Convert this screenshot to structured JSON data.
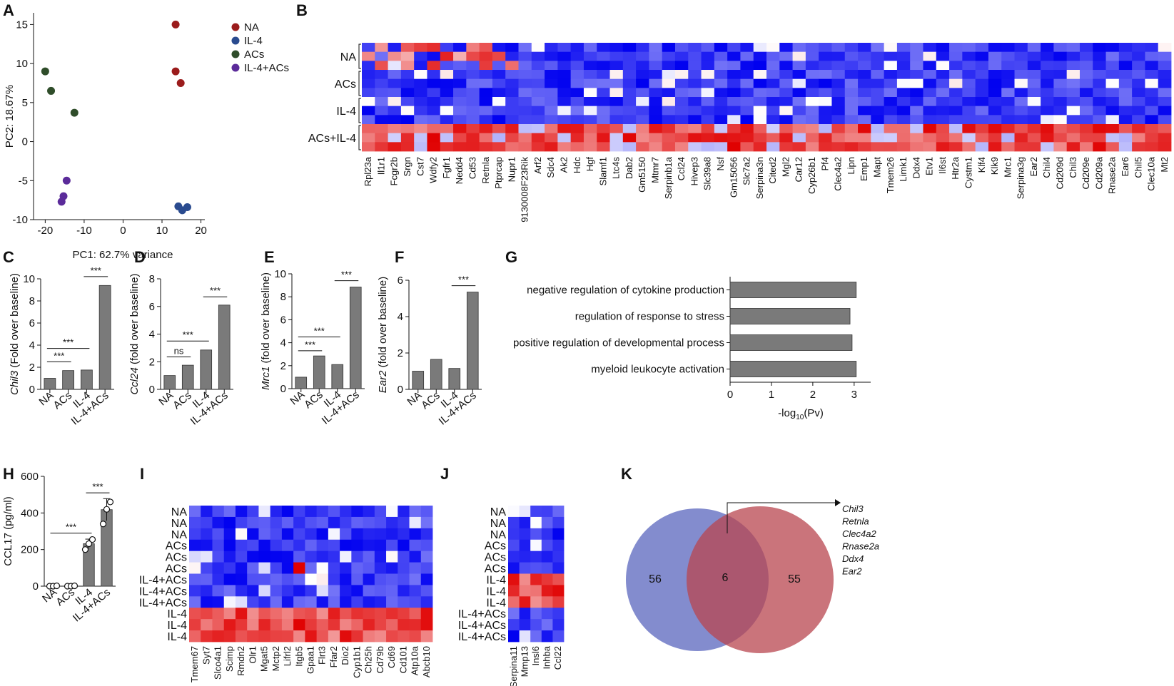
{
  "panels": {
    "A": "A",
    "B": "B",
    "C": "C",
    "D": "D",
    "E": "E",
    "F": "F",
    "G": "G",
    "H": "H",
    "I": "I",
    "J": "J",
    "K": "K"
  },
  "colors": {
    "NA": "#9b1c1c",
    "IL4": "#2a4b8f",
    "ACs": "#2f4d2a",
    "IL4ACs": "#5b2b9a",
    "bar": "#7a7a7a",
    "heat_low": "#0000f0",
    "heat_mid": "#ffffff",
    "heat_high": "#e00000",
    "venn_left": "#5a66bd",
    "venn_right": "#b8464f"
  },
  "chart_data": [
    {
      "id": "A",
      "type": "scatter",
      "xlabel": "PC1: 62.7% variance",
      "ylabel": "PC2: 18.67%",
      "xlim": [
        -23,
        21
      ],
      "ylim": [
        -10,
        16.5
      ],
      "xticks": [
        -20,
        -10,
        0,
        10,
        20
      ],
      "yticks": [
        15,
        10,
        5,
        0,
        -5,
        -10
      ],
      "legend": [
        "NA",
        "IL-4",
        "ACs",
        "IL-4+ACs"
      ],
      "series": [
        {
          "name": "NA",
          "points": [
            [
              13.5,
              15
            ],
            [
              13.5,
              9
            ],
            [
              14.8,
              7.5
            ]
          ]
        },
        {
          "name": "IL-4",
          "points": [
            [
              14.2,
              -8.3
            ],
            [
              15.2,
              -8.8
            ],
            [
              16.5,
              -8.4
            ]
          ]
        },
        {
          "name": "ACs",
          "points": [
            [
              -20,
              9
            ],
            [
              -18.5,
              6.5
            ],
            [
              -12.5,
              3.7
            ]
          ]
        },
        {
          "name": "IL-4+ACs",
          "points": [
            [
              -14.5,
              -5
            ],
            [
              -15.3,
              -7
            ],
            [
              -15.8,
              -7.7
            ]
          ]
        }
      ]
    },
    {
      "id": "B",
      "type": "heatmap",
      "row_groups": [
        "NA",
        "ACs",
        "IL-4",
        "ACs+IL-4"
      ],
      "genes": [
        "Rpl23a",
        "Il1r1",
        "Fcgr2b",
        "Srgn",
        "Cst7",
        "Wdfy2",
        "Fgfr1",
        "Nedd4",
        "Cd53",
        "Retnla",
        "Ptprcap",
        "Nupr1",
        "9130008F23Rik",
        "Arf2",
        "Sdc4",
        "Ak2",
        "Hdc",
        "Hgf",
        "Slamf1",
        "Ltc4s",
        "Dab2",
        "Gm5150",
        "Mtmr7",
        "Serpinb1a",
        "Ccl24",
        "Hivep3",
        "Slc39a8",
        "Nsf",
        "Gm15056",
        "Slc7a2",
        "Serpina3n",
        "Cited2",
        "Mgl2",
        "Car12",
        "Cyp26b1",
        "Pf4",
        "Clec4a2",
        "Lipn",
        "Emp1",
        "Mapt",
        "Tmem26",
        "Limk1",
        "Ddx4",
        "Etv1",
        "Il6st",
        "Htr2a",
        "Cystm1",
        "Klf4",
        "Klk9",
        "Mrc1",
        "Serpina3g",
        "Ear2",
        "Chil4",
        "Cd209d",
        "Chil3",
        "Cd209e",
        "Cd209a",
        "Rnase2a",
        "Ear6",
        "Chil5",
        "Clec10a",
        "Mt2"
      ]
    },
    {
      "id": "C",
      "type": "bar",
      "ylabel_gene": "Chil3",
      "ylabel_rest": " (Fold over baseline)",
      "categories": [
        "NA",
        "ACs",
        "IL-4",
        "IL-4+ACs"
      ],
      "values": [
        1.0,
        1.7,
        1.75,
        9.4
      ],
      "ylim": [
        0,
        10
      ],
      "yticks": [
        0,
        2,
        4,
        6,
        8,
        10
      ],
      "annotations": [
        {
          "from": 0,
          "to": 1,
          "label": "***",
          "y": 2.5
        },
        {
          "from": 0,
          "to": 2,
          "label": "***",
          "y": 3.7
        },
        {
          "from": 2,
          "to": 3,
          "label": "***",
          "y": 10.2
        }
      ]
    },
    {
      "id": "D",
      "type": "bar",
      "ylabel_gene": "Ccl24",
      "ylabel_rest": " (fold over baseline)",
      "categories": [
        "NA",
        "ACs",
        "IL-4",
        "IL-4+ACs"
      ],
      "values": [
        1.0,
        1.75,
        2.85,
        6.1
      ],
      "ylim": [
        0,
        8
      ],
      "yticks": [
        0,
        2,
        4,
        6,
        8
      ],
      "annotations": [
        {
          "from": 0,
          "to": 1,
          "label": "ns",
          "y": 2.35
        },
        {
          "from": 0,
          "to": 2,
          "label": "***",
          "y": 3.5
        },
        {
          "from": 2,
          "to": 3,
          "label": "***",
          "y": 6.7
        }
      ]
    },
    {
      "id": "E",
      "type": "bar",
      "ylabel_gene": "Mrc1",
      "ylabel_rest": " (fold over baseline)",
      "categories": [
        "NA",
        "ACs",
        "IL-4",
        "IL-4+ACs"
      ],
      "values": [
        1.0,
        2.85,
        2.1,
        8.85
      ],
      "ylim": [
        0,
        10
      ],
      "yticks": [
        0,
        2,
        4,
        6,
        8,
        10
      ],
      "annotations": [
        {
          "from": 0,
          "to": 1,
          "label": "***",
          "y": 3.3
        },
        {
          "from": 0,
          "to": 2,
          "label": "***",
          "y": 4.5
        },
        {
          "from": 2,
          "to": 3,
          "label": "***",
          "y": 9.4
        }
      ]
    },
    {
      "id": "F",
      "type": "bar",
      "ylabel_gene": "Ear2",
      "ylabel_rest": " (fold over baseline)",
      "categories": [
        "NA",
        "ACs",
        "IL-4",
        "IL-4+ACs"
      ],
      "values": [
        1.0,
        1.65,
        1.15,
        5.35
      ],
      "ylim": [
        0,
        6
      ],
      "yticks": [
        0,
        2,
        4,
        6
      ],
      "annotations": [
        {
          "from": 2,
          "to": 3,
          "label": "***",
          "y": 5.7
        }
      ]
    },
    {
      "id": "G",
      "type": "bar",
      "orientation": "horizontal",
      "categories": [
        "negative regulation of cytokine production",
        "regulation of response to stress",
        "positive regulation of developmental process",
        "myeloid leukocyte activation"
      ],
      "values": [
        3.05,
        2.9,
        2.95,
        3.05
      ],
      "xlim": [
        0,
        3.4
      ],
      "xticks": [
        0,
        1,
        2,
        3
      ],
      "xlabel_pre": "-log",
      "xlabel_sub": "10",
      "xlabel_post": "(Pv)"
    },
    {
      "id": "H",
      "type": "bar",
      "ylabel": "CCL17 (pg/ml)",
      "categories": [
        "NA",
        "ACs",
        "IL-4",
        "IL-4+ACs"
      ],
      "values": [
        0,
        0,
        232,
        418
      ],
      "errors": [
        0,
        0,
        25,
        60
      ],
      "points": [
        [
          -2,
          0,
          2
        ],
        [
          -2,
          0,
          2
        ],
        [
          200,
          232,
          255
        ],
        [
          340,
          420,
          460
        ]
      ],
      "ylim": [
        0,
        600
      ],
      "yticks": [
        0,
        200,
        400,
        600
      ],
      "annotations": [
        {
          "from": 0,
          "to": 2,
          "label": "***",
          "y": 290
        },
        {
          "from": 2,
          "to": 3,
          "label": "***",
          "y": 510
        }
      ]
    },
    {
      "id": "I",
      "type": "heatmap",
      "rows": [
        "NA",
        "NA",
        "NA",
        "ACs",
        "ACs",
        "ACs",
        "IL-4+ACs",
        "IL-4+ACs",
        "IL-4+ACs",
        "IL-4",
        "IL-4",
        "IL-4"
      ],
      "genes": [
        "Tmem67",
        "Syt7",
        "Slco4a1",
        "Scimp",
        "Rmdn2",
        "Olr1",
        "Mgat5",
        "Mctp2",
        "Lifrl2",
        "Itgb5",
        "Gpaa1",
        "Flrt3",
        "Ffar2",
        "Dio2",
        "Cyp1b1",
        "Ch25h",
        "Cd79b",
        "Cd69",
        "Cd101",
        "Atp10a",
        "Abcb10"
      ]
    },
    {
      "id": "J",
      "type": "heatmap",
      "rows": [
        "NA",
        "NA",
        "NA",
        "ACs",
        "ACs",
        "ACs",
        "IL-4",
        "IL-4",
        "IL-4",
        "IL-4+ACs",
        "IL-4+ACs",
        "IL-4+ACs"
      ],
      "genes": [
        "Serpina11",
        "Mmp13",
        "Insl6",
        "Inhba",
        "Ccl22"
      ]
    }
  ],
  "venn": {
    "left_count": "56",
    "overlap_count": "6",
    "right_count": "55",
    "overlap_genes": [
      "Chil3",
      "Retnla",
      "Clec4a2",
      "Rnase2a",
      "Ddx4",
      "Ear2"
    ]
  }
}
